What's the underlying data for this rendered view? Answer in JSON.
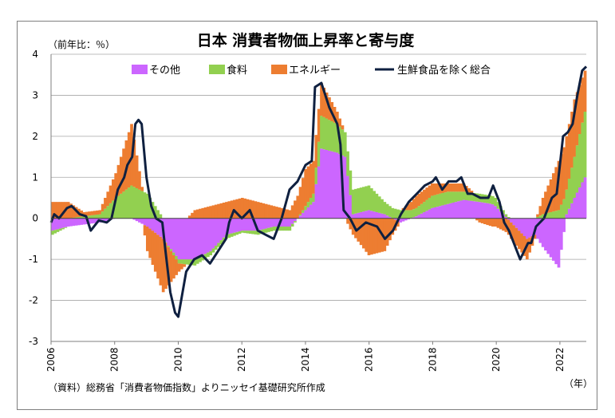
{
  "chart_data": {
    "type": "bar",
    "stacked": true,
    "title": "日本 消費者物価上昇率と寄与度",
    "unit_label": "（前年比：％）",
    "xlabel_unit": "（年）",
    "source": "（資料）総務省「消費者物価指数」よりニッセイ基礎研究所作成",
    "ylim": [
      -3,
      4
    ],
    "yticks": [
      -3,
      -2,
      -1,
      0,
      1,
      2,
      3,
      4
    ],
    "xlim": [
      2006,
      2022.83
    ],
    "xticks": [
      "2006",
      "2008",
      "2010",
      "2012",
      "2014",
      "2016",
      "2018",
      "2020",
      "2022"
    ],
    "grid": true,
    "legend_position": "top",
    "legend": [
      {
        "label": "その他",
        "color": "#cc66ff"
      },
      {
        "label": "食料",
        "color": "#92d050"
      },
      {
        "label": "エネルギー",
        "color": "#ed7d31"
      },
      {
        "label": "生鮮食品を除く総合",
        "color": "#0f2040"
      }
    ],
    "series": [
      {
        "name": "その他",
        "color": "#cc66ff",
        "x": [
          2006.0,
          2006.5,
          2007.0,
          2007.5,
          2008.0,
          2008.5,
          2009.0,
          2009.5,
          2010.0,
          2010.5,
          2011.0,
          2011.5,
          2012.0,
          2012.5,
          2013.0,
          2013.5,
          2014.0,
          2014.25,
          2014.5,
          2015.0,
          2015.25,
          2015.5,
          2016.0,
          2016.5,
          2017.0,
          2017.5,
          2018.0,
          2018.5,
          2019.0,
          2019.5,
          2019.9,
          2020.0,
          2020.5,
          2021.0,
          2021.25,
          2021.5,
          2022.0,
          2022.25,
          2022.5,
          2022.83
        ],
        "values": [
          -0.3,
          -0.2,
          -0.15,
          -0.1,
          0.0,
          0.0,
          -0.2,
          -0.5,
          -1.0,
          -1.0,
          -0.8,
          -0.4,
          -0.3,
          -0.3,
          -0.2,
          -0.2,
          0.2,
          0.4,
          1.7,
          1.6,
          1.5,
          0.1,
          0.2,
          0.1,
          -0.1,
          0.05,
          0.25,
          0.35,
          0.45,
          0.4,
          0.35,
          0.3,
          -0.1,
          -0.5,
          -0.4,
          -0.7,
          -1.2,
          0.1,
          0.5,
          1.0
        ]
      },
      {
        "name": "食料",
        "color": "#92d050",
        "x": [
          2006.0,
          2006.5,
          2007.0,
          2007.5,
          2008.0,
          2008.5,
          2009.0,
          2009.5,
          2010.0,
          2010.5,
          2011.0,
          2011.5,
          2012.0,
          2012.5,
          2013.0,
          2013.5,
          2014.0,
          2014.25,
          2014.5,
          2015.0,
          2015.25,
          2015.5,
          2016.0,
          2016.5,
          2017.0,
          2017.5,
          2018.0,
          2018.5,
          2019.0,
          2019.5,
          2019.9,
          2020.0,
          2020.5,
          2021.0,
          2021.25,
          2021.5,
          2022.0,
          2022.25,
          2022.5,
          2022.83
        ],
        "values": [
          -0.1,
          0.0,
          0.05,
          0.1,
          0.5,
          0.8,
          0.6,
          0.0,
          -0.1,
          -0.15,
          -0.1,
          -0.1,
          -0.05,
          -0.1,
          -0.1,
          -0.1,
          0.1,
          0.2,
          0.8,
          0.7,
          0.6,
          0.6,
          0.6,
          0.3,
          0.2,
          0.2,
          0.3,
          0.3,
          0.2,
          0.2,
          0.2,
          0.2,
          0.0,
          0.0,
          0.0,
          0.1,
          0.2,
          0.6,
          1.0,
          1.6
        ]
      },
      {
        "name": "エネルギー",
        "color": "#ed7d31",
        "x": [
          2006.0,
          2006.5,
          2007.0,
          2007.5,
          2008.0,
          2008.5,
          2009.0,
          2009.5,
          2010.0,
          2010.5,
          2011.0,
          2011.5,
          2012.0,
          2012.5,
          2013.0,
          2013.5,
          2014.0,
          2014.25,
          2014.5,
          2015.0,
          2015.25,
          2015.5,
          2016.0,
          2016.5,
          2017.0,
          2017.5,
          2018.0,
          2018.5,
          2019.0,
          2019.5,
          2019.9,
          2020.0,
          2020.5,
          2021.0,
          2021.25,
          2021.5,
          2022.0,
          2022.25,
          2022.5,
          2022.83
        ],
        "values": [
          0.4,
          0.4,
          0.1,
          0.1,
          0.6,
          1.5,
          -0.6,
          -1.3,
          -0.2,
          0.2,
          0.3,
          0.4,
          0.5,
          0.4,
          0.3,
          0.2,
          0.9,
          0.8,
          0.8,
          0.3,
          0.0,
          -0.4,
          -0.9,
          -0.8,
          0.0,
          0.3,
          0.3,
          0.2,
          0.2,
          -0.1,
          -0.2,
          -0.2,
          -0.4,
          -0.5,
          -0.1,
          0.4,
          1.2,
          1.3,
          1.4,
          1.0
        ]
      },
      {
        "name": "生鮮食品を除く総合",
        "type": "line",
        "color": "#0f2040",
        "x": [
          2006.0,
          2006.1,
          2006.25,
          2006.5,
          2006.65,
          2006.9,
          2007.1,
          2007.25,
          2007.5,
          2007.75,
          2007.9,
          2008.1,
          2008.3,
          2008.4,
          2008.55,
          2008.65,
          2008.75,
          2008.85,
          2009.0,
          2009.15,
          2009.3,
          2009.5,
          2009.6,
          2009.75,
          2009.9,
          2010.0,
          2010.25,
          2010.5,
          2010.75,
          2011.0,
          2011.25,
          2011.5,
          2011.6,
          2011.75,
          2012.0,
          2012.25,
          2012.5,
          2012.75,
          2013.0,
          2013.25,
          2013.5,
          2013.75,
          2014.0,
          2014.2,
          2014.3,
          2014.5,
          2014.75,
          2015.0,
          2015.1,
          2015.2,
          2015.4,
          2015.6,
          2015.9,
          2016.25,
          2016.5,
          2016.75,
          2017.0,
          2017.25,
          2017.5,
          2017.75,
          2018.0,
          2018.1,
          2018.3,
          2018.5,
          2018.75,
          2018.9,
          2019.1,
          2019.25,
          2019.5,
          2019.75,
          2019.9,
          2020.0,
          2020.1,
          2020.25,
          2020.4,
          2020.6,
          2020.75,
          2021.0,
          2021.1,
          2021.25,
          2021.5,
          2021.75,
          2021.9,
          2022.1,
          2022.25,
          2022.4,
          2022.55,
          2022.7,
          2022.83
        ],
        "values": [
          -0.1,
          0.1,
          0.0,
          0.25,
          0.3,
          0.1,
          0.05,
          -0.3,
          -0.05,
          -0.1,
          0.0,
          0.7,
          1.0,
          1.3,
          1.5,
          2.3,
          2.4,
          2.3,
          1.0,
          0.3,
          0.0,
          -0.1,
          -0.8,
          -1.8,
          -2.3,
          -2.4,
          -1.3,
          -1.0,
          -0.9,
          -1.1,
          -0.8,
          -0.5,
          -0.1,
          0.2,
          0.0,
          0.2,
          -0.3,
          -0.4,
          -0.5,
          0.0,
          0.7,
          0.9,
          1.3,
          1.4,
          3.2,
          3.3,
          2.7,
          2.3,
          1.8,
          0.2,
          0.0,
          -0.3,
          -0.1,
          -0.2,
          -0.5,
          -0.3,
          0.1,
          0.4,
          0.6,
          0.8,
          0.9,
          1.0,
          0.7,
          0.9,
          0.9,
          1.0,
          0.6,
          0.6,
          0.5,
          0.5,
          0.8,
          0.6,
          0.4,
          -0.1,
          -0.3,
          -0.7,
          -1.0,
          -0.6,
          -0.6,
          -0.2,
          0.0,
          0.5,
          0.6,
          2.0,
          2.1,
          2.3,
          3.0,
          3.6,
          3.7
        ]
      }
    ]
  }
}
